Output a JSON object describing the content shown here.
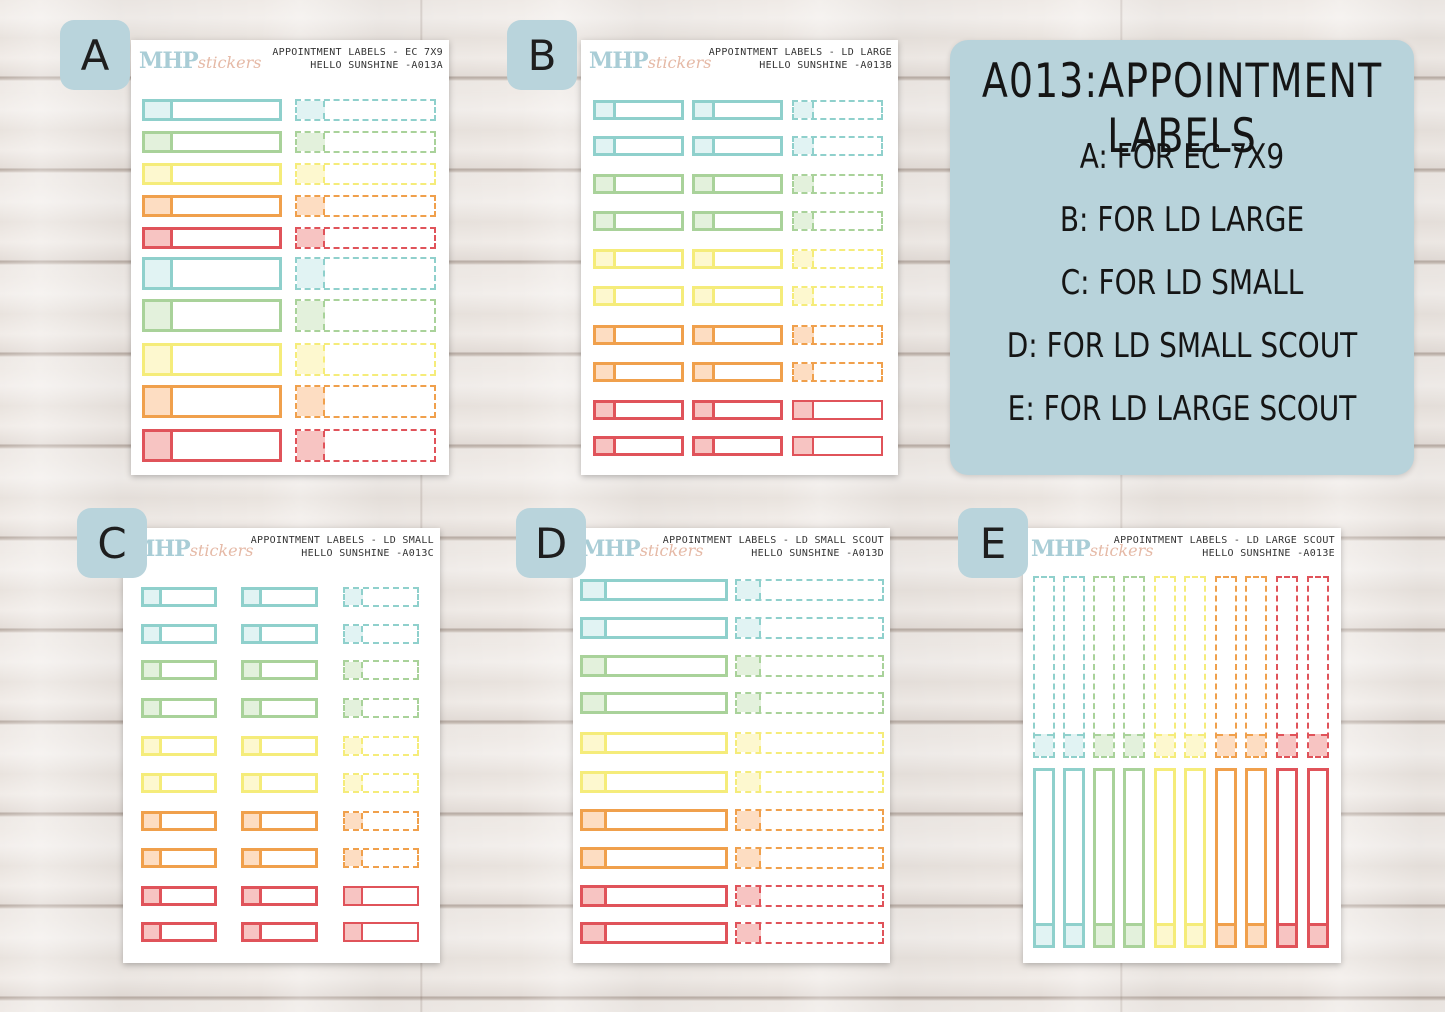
{
  "brand": {
    "main": "MHP",
    "script": "stickers"
  },
  "info": {
    "title": "A013:APPOINTMENT LABELS",
    "lines": [
      "A: FOR EC 7X9",
      "B: FOR LD LARGE",
      "C: FOR LD SMALL",
      "D: FOR LD SMALL SCOUT",
      "E: FOR LD LARGE SCOUT"
    ]
  },
  "colors": {
    "teal": "#8fd0cc",
    "green": "#a9d29a",
    "yellow": "#f5ec7a",
    "orange": "#f0a04c",
    "red": "#e0535a"
  },
  "tab_colors": {
    "teal": "#e1f3f3",
    "green": "#e3f1dc",
    "yellow": "#fdf8cf",
    "orange": "#fdddc2",
    "red": "#f7c4c2"
  },
  "sheets": [
    {
      "id": "A",
      "letter": "A",
      "title_line1": "APPOINTMENT LABELS - EC 7X9",
      "title_line2": "HELLO SUNSHINE -A013A"
    },
    {
      "id": "B",
      "letter": "B",
      "title_line1": "APPOINTMENT LABELS - LD LARGE",
      "title_line2": "HELLO SUNSHINE -A013B"
    },
    {
      "id": "C",
      "letter": "C",
      "title_line1": "APPOINTMENT LABELS - LD SMALL",
      "title_line2": "HELLO SUNSHINE -A013C"
    },
    {
      "id": "D",
      "letter": "D",
      "title_line1": "APPOINTMENT LABELS - LD SMALL SCOUT",
      "title_line2": "HELLO SUNSHINE -A013D"
    },
    {
      "id": "E",
      "letter": "E",
      "title_line1": "APPOINTMENT LABELS - LD LARGE SCOUT",
      "title_line2": "HELLO SUNSHINE -A013E"
    }
  ]
}
